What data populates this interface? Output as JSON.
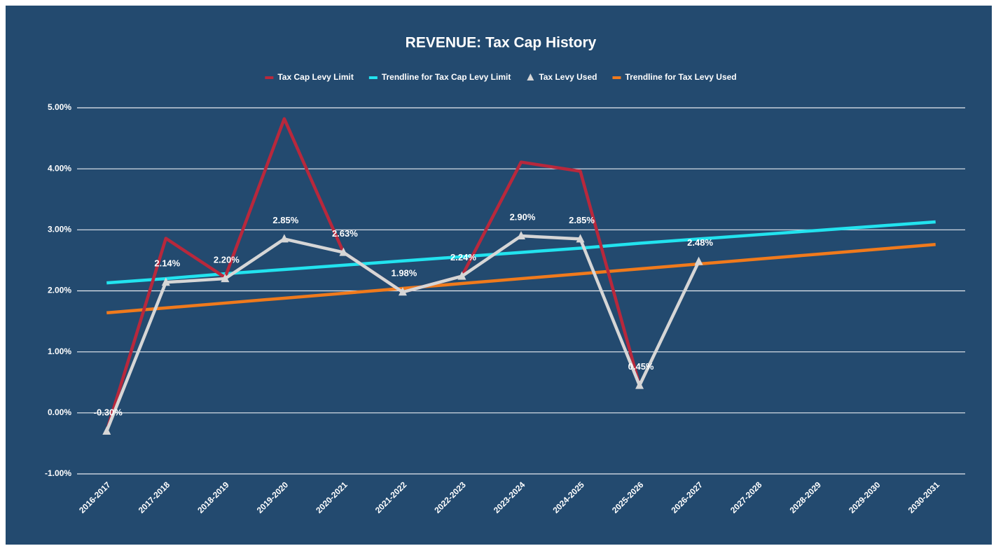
{
  "chart_data": {
    "type": "line",
    "title": "REVENUE: Tax Cap History",
    "categories": [
      "2016-2017",
      "2017-2018",
      "2018-2019",
      "2019-2020",
      "2020-2021",
      "2021-2022",
      "2022-2023",
      "2023-2024",
      "2024-2025",
      "2025-2026",
      "2026-2027",
      "2027-2028",
      "2028-2029",
      "2029-2030",
      "2030-2031"
    ],
    "series": [
      {
        "name": "Tax Cap Levy Limit",
        "color": "#b8283c",
        "values": [
          -0.3,
          2.86,
          2.22,
          4.82,
          2.63,
          1.98,
          2.24,
          4.11,
          3.96,
          0.45,
          null,
          null,
          null,
          null,
          null
        ]
      },
      {
        "name": "Trendline for Tax Cap Levy Limit",
        "color": "#22e3ef",
        "values": [
          2.13,
          2.2,
          2.28,
          2.35,
          2.42,
          2.49,
          2.56,
          2.63,
          2.7,
          2.78,
          2.85,
          2.92,
          2.99,
          3.06,
          3.13
        ]
      },
      {
        "name": "Tax Levy Used",
        "color": "#d6d6d6",
        "marker": "triangle",
        "values": [
          -0.3,
          2.14,
          2.2,
          2.85,
          2.63,
          1.98,
          2.24,
          2.9,
          2.85,
          0.45,
          2.48,
          null,
          null,
          null,
          null
        ],
        "value_labels": [
          "-0.30%",
          "2.14%",
          "2.20%",
          "2.85%",
          "2.63%",
          "1.98%",
          "2.24%",
          "2.90%",
          "2.85%",
          "0.45%",
          "2.48%",
          null,
          null,
          null,
          null
        ]
      },
      {
        "name": "Trendline for Tax Levy Used",
        "color": "#f07a1c",
        "values": [
          1.64,
          1.72,
          1.8,
          1.88,
          1.96,
          2.04,
          2.12,
          2.2,
          2.28,
          2.36,
          2.44,
          2.52,
          2.6,
          2.68,
          2.76
        ]
      }
    ],
    "ylim": [
      -1,
      5
    ],
    "yticks": [
      {
        "value": -1,
        "label": "-1.00%"
      },
      {
        "value": 0,
        "label": "0.00%"
      },
      {
        "value": 1,
        "label": "1.00%"
      },
      {
        "value": 2,
        "label": "2.00%"
      },
      {
        "value": 3,
        "label": "3.00%"
      },
      {
        "value": 4,
        "label": "4.00%"
      },
      {
        "value": 5,
        "label": "5.00%"
      }
    ],
    "grid": true,
    "legend": "top"
  }
}
